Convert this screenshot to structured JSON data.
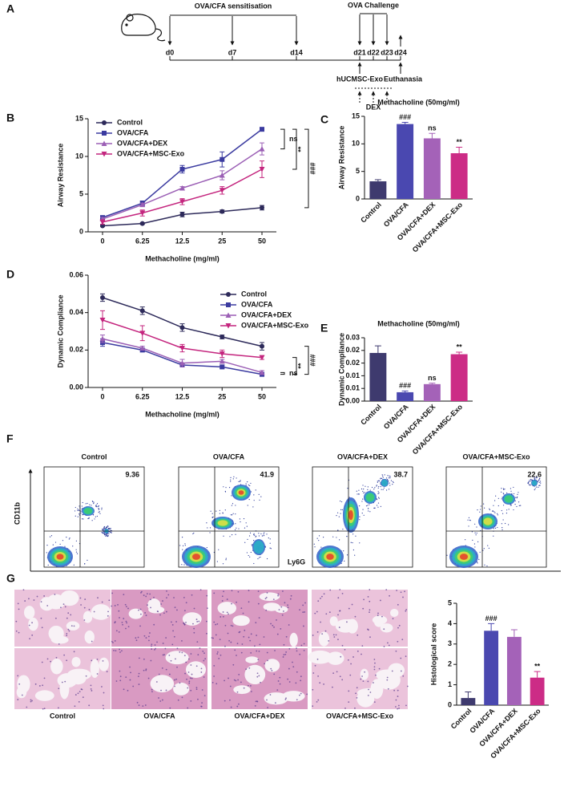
{
  "panel_labels": [
    "A",
    "B",
    "C",
    "D",
    "E",
    "F",
    "G"
  ],
  "timeline": {
    "sensitisation": "OVA/CFA sensitisation",
    "challenge": "OVA Challenge",
    "days": [
      "d0",
      "d7",
      "d14",
      "d21",
      "d22",
      "d23",
      "d24"
    ],
    "treatment": "hUCMSC-Exo",
    "euthanasia": "Euthanasia",
    "dex": "DEX"
  },
  "chart_data": [
    {
      "type": "line",
      "panel": "B",
      "y_label": "Airway Resistance",
      "x_label": "Methacholine (mg/ml)",
      "categories": [
        "0",
        "6.25",
        "12.5",
        "25",
        "50"
      ],
      "ylim": [
        0,
        15
      ],
      "yticks": [
        0,
        5,
        10,
        15
      ],
      "legend": "top-left",
      "brackets": [
        "ns",
        "**",
        "###"
      ],
      "series": [
        {
          "name": "Control",
          "color": "#2d2a5a",
          "marker": "circle",
          "values": [
            0.8,
            1.1,
            2.3,
            2.7,
            3.2
          ],
          "errors": [
            0.1,
            0.1,
            0.3,
            0.2,
            0.3
          ]
        },
        {
          "name": "OVA/CFA",
          "color": "#3b3ba0",
          "marker": "square",
          "values": [
            1.9,
            3.8,
            8.3,
            9.6,
            13.6
          ],
          "errors": [
            0.2,
            0.3,
            0.5,
            1.0,
            0.2
          ]
        },
        {
          "name": "OVA/CFA+DEX",
          "color": "#9b5fb5",
          "marker": "triangle",
          "values": [
            1.7,
            3.6,
            5.8,
            7.5,
            11.0
          ],
          "errors": [
            0.2,
            0.2,
            0.2,
            0.6,
            0.8
          ]
        },
        {
          "name": "OVA/CFA+MSC-Exo",
          "color": "#c4257e",
          "marker": "triangle-down",
          "values": [
            1.3,
            2.5,
            4.0,
            5.5,
            8.3
          ],
          "errors": [
            0.3,
            0.4,
            0.4,
            0.5,
            1.1
          ]
        }
      ]
    },
    {
      "type": "bar",
      "panel": "C",
      "title": "Methacholine (50mg/ml)",
      "y_label": "Airway Resistance",
      "categories": [
        "Control",
        "OVA/CFA",
        "OVA/CFA+DEX",
        "OVA/CFA+MSC-Exo"
      ],
      "colors": [
        "#3e3a6e",
        "#4a48b0",
        "#a462b8",
        "#cc2c86"
      ],
      "values": [
        3.2,
        13.6,
        11.0,
        8.3
      ],
      "errors": [
        0.3,
        0.3,
        0.9,
        1.1
      ],
      "significance": [
        null,
        "###",
        "ns",
        "**"
      ],
      "ylim": [
        0,
        15
      ],
      "yticks": [
        0,
        5,
        10,
        15
      ]
    },
    {
      "type": "line",
      "panel": "D",
      "y_label": "Dynamic Compliance",
      "x_label": "Methacholine (mg/ml)",
      "categories": [
        "0",
        "6.25",
        "12.5",
        "25",
        "50"
      ],
      "ylim": [
        0,
        0.06
      ],
      "yticks": [
        {
          "value": 0,
          "label": "0.00"
        },
        0.02,
        0.04,
        0.06
      ],
      "legend": "top-right",
      "brackets": [
        "ns",
        "**",
        "###"
      ],
      "series": [
        {
          "name": "Control",
          "color": "#2d2a5a",
          "marker": "circle",
          "values": [
            0.048,
            0.041,
            0.032,
            0.027,
            0.022
          ],
          "errors": [
            0.002,
            0.002,
            0.002,
            0.001,
            0.002
          ]
        },
        {
          "name": "OVA/CFA",
          "color": "#3b3ba0",
          "marker": "square",
          "values": [
            0.024,
            0.02,
            0.012,
            0.011,
            0.007
          ],
          "errors": [
            0.002,
            0.001,
            0.001,
            0.001,
            0.001
          ]
        },
        {
          "name": "OVA/CFA+DEX",
          "color": "#9b5fb5",
          "marker": "triangle",
          "values": [
            0.026,
            0.021,
            0.013,
            0.014,
            0.008
          ],
          "errors": [
            0.002,
            0.001,
            0.002,
            0.001,
            0.001
          ]
        },
        {
          "name": "OVA/CFA+MSC-Exo",
          "color": "#c4257e",
          "marker": "triangle-down",
          "values": [
            0.036,
            0.029,
            0.021,
            0.018,
            0.016
          ],
          "errors": [
            0.005,
            0.004,
            0.002,
            0.002,
            0.001
          ]
        }
      ]
    },
    {
      "type": "bar",
      "panel": "E",
      "title": "Methacholine (50mg/ml)",
      "y_label": "Dynamic Compliance",
      "categories": [
        "Control",
        "OVA/CFA",
        "OVA/CFA+DEX",
        "OVA/CFA+MSC-Exo"
      ],
      "colors": [
        "#3e3a6e",
        "#4a48b0",
        "#a462b8",
        "#cc2c86"
      ],
      "values": [
        0.019,
        0.0035,
        0.0067,
        0.0185
      ],
      "errors": [
        0.0028,
        0.0005,
        0.0004,
        0.0008
      ],
      "significance": [
        null,
        "###",
        "ns",
        "**"
      ],
      "ylim": [
        0,
        0.025
      ],
      "yticks": [
        {
          "value": 0,
          "label": "0.00"
        },
        {
          "value": 0.005,
          "label": "0.01"
        },
        {
          "value": 0.01,
          "label": "0.01"
        },
        {
          "value": 0.015,
          "label": "0.02"
        },
        {
          "value": 0.02,
          "label": "0.02"
        },
        {
          "value": 0.025,
          "label": "0.03"
        }
      ]
    },
    {
      "type": "bar",
      "panel": "G",
      "y_label": "Histological score",
      "categories": [
        "Control",
        "OVA/CFA",
        "OVA/CFA+DEX",
        "OVA/CFA+MSC-Exo"
      ],
      "colors": [
        "#3e3a6e",
        "#4a48b0",
        "#a462b8",
        "#cc2c86"
      ],
      "values": [
        0.35,
        3.65,
        3.35,
        1.35
      ],
      "errors": [
        0.3,
        0.35,
        0.35,
        0.3
      ],
      "significance": [
        null,
        "###",
        null,
        "**"
      ],
      "ylim": [
        0,
        5
      ],
      "yticks": [
        0,
        1,
        2,
        3,
        4,
        5
      ]
    }
  ],
  "flow": {
    "y_label": "CD11b",
    "x_label": "Ly6G",
    "panels": [
      {
        "title": "Control",
        "percent": 9.36
      },
      {
        "title": "OVA/CFA",
        "percent": 41.9
      },
      {
        "title": "OVA/CFA+DEX",
        "percent": 38.7
      },
      {
        "title": "OVA/CFA+MSC-Exo",
        "percent": 22.6
      }
    ]
  },
  "histology": {
    "labels": [
      "Control",
      "OVA/CFA",
      "OVA/CFA+DEX",
      "OVA/CFA+MSC-Exo"
    ]
  }
}
